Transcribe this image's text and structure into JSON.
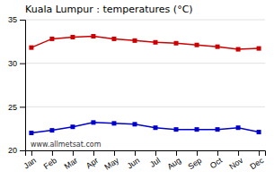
{
  "chart_data": {
    "type": "line",
    "title": "Kuala Lumpur : temperatures (°C)",
    "categories": [
      "Jan",
      "Feb",
      "Mar",
      "Apr",
      "May",
      "Jun",
      "Jul",
      "Aug",
      "Sep",
      "Oct",
      "Nov",
      "Dec"
    ],
    "series": [
      {
        "color": "#cc0000",
        "marker": "square",
        "values": [
          31.8,
          32.8,
          33.0,
          33.1,
          32.8,
          32.6,
          32.4,
          32.3,
          32.1,
          31.9,
          31.6,
          31.7
        ]
      },
      {
        "color": "#0000cc",
        "marker": "square",
        "values": [
          22.0,
          22.3,
          22.7,
          23.2,
          23.1,
          23.0,
          22.6,
          22.4,
          22.4,
          22.4,
          22.6,
          22.1
        ]
      }
    ],
    "ylim": [
      20,
      35
    ],
    "yticks": [
      20,
      25,
      30,
      35
    ],
    "grid": true,
    "annotation": "www.allmetsat.com"
  }
}
